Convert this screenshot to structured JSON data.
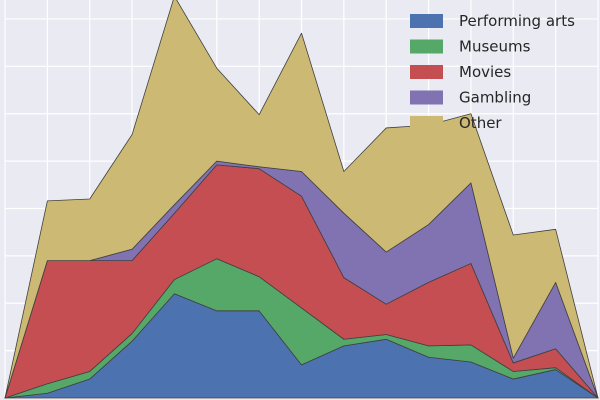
{
  "chart_data": {
    "type": "area",
    "stacked": true,
    "x": [
      0,
      1,
      2,
      3,
      4,
      5,
      6,
      7,
      8,
      9,
      10,
      11,
      12,
      13,
      14
    ],
    "xlim": [
      0,
      14
    ],
    "ylim": [
      0,
      4.2
    ],
    "grid": true,
    "legend_position": "top-right",
    "series": [
      {
        "name": "Performing arts",
        "color": "#4c72b0",
        "values": [
          0,
          0.05,
          0.2,
          0.6,
          1.1,
          0.92,
          0.92,
          0.35,
          0.55,
          0.62,
          0.43,
          0.38,
          0.2,
          0.3,
          0
        ]
      },
      {
        "name": "Museums",
        "color": "#55a868",
        "values": [
          0,
          0.1,
          0.08,
          0.08,
          0.15,
          0.55,
          0.36,
          0.6,
          0.07,
          0.05,
          0.12,
          0.18,
          0.08,
          0.02,
          0
        ]
      },
      {
        "name": "Movies",
        "color": "#c44e52",
        "values": [
          0,
          1.3,
          1.17,
          0.77,
          0.7,
          0.99,
          1.14,
          1.18,
          0.65,
          0.32,
          0.67,
          0.86,
          0.09,
          0.2,
          0
        ]
      },
      {
        "name": "Gambling",
        "color": "#8172b2",
        "values": [
          0,
          0,
          0,
          0.12,
          0.09,
          0.04,
          0.02,
          0.26,
          0.68,
          0.55,
          0.61,
          0.85,
          0.05,
          0.7,
          0
        ]
      },
      {
        "name": "Other",
        "color": "#ccb974",
        "values": [
          0,
          0.63,
          0.65,
          1.21,
          2.2,
          0.98,
          0.55,
          1.46,
          0.44,
          1.31,
          1.05,
          0.73,
          1.3,
          0.56,
          0
        ]
      }
    ]
  }
}
